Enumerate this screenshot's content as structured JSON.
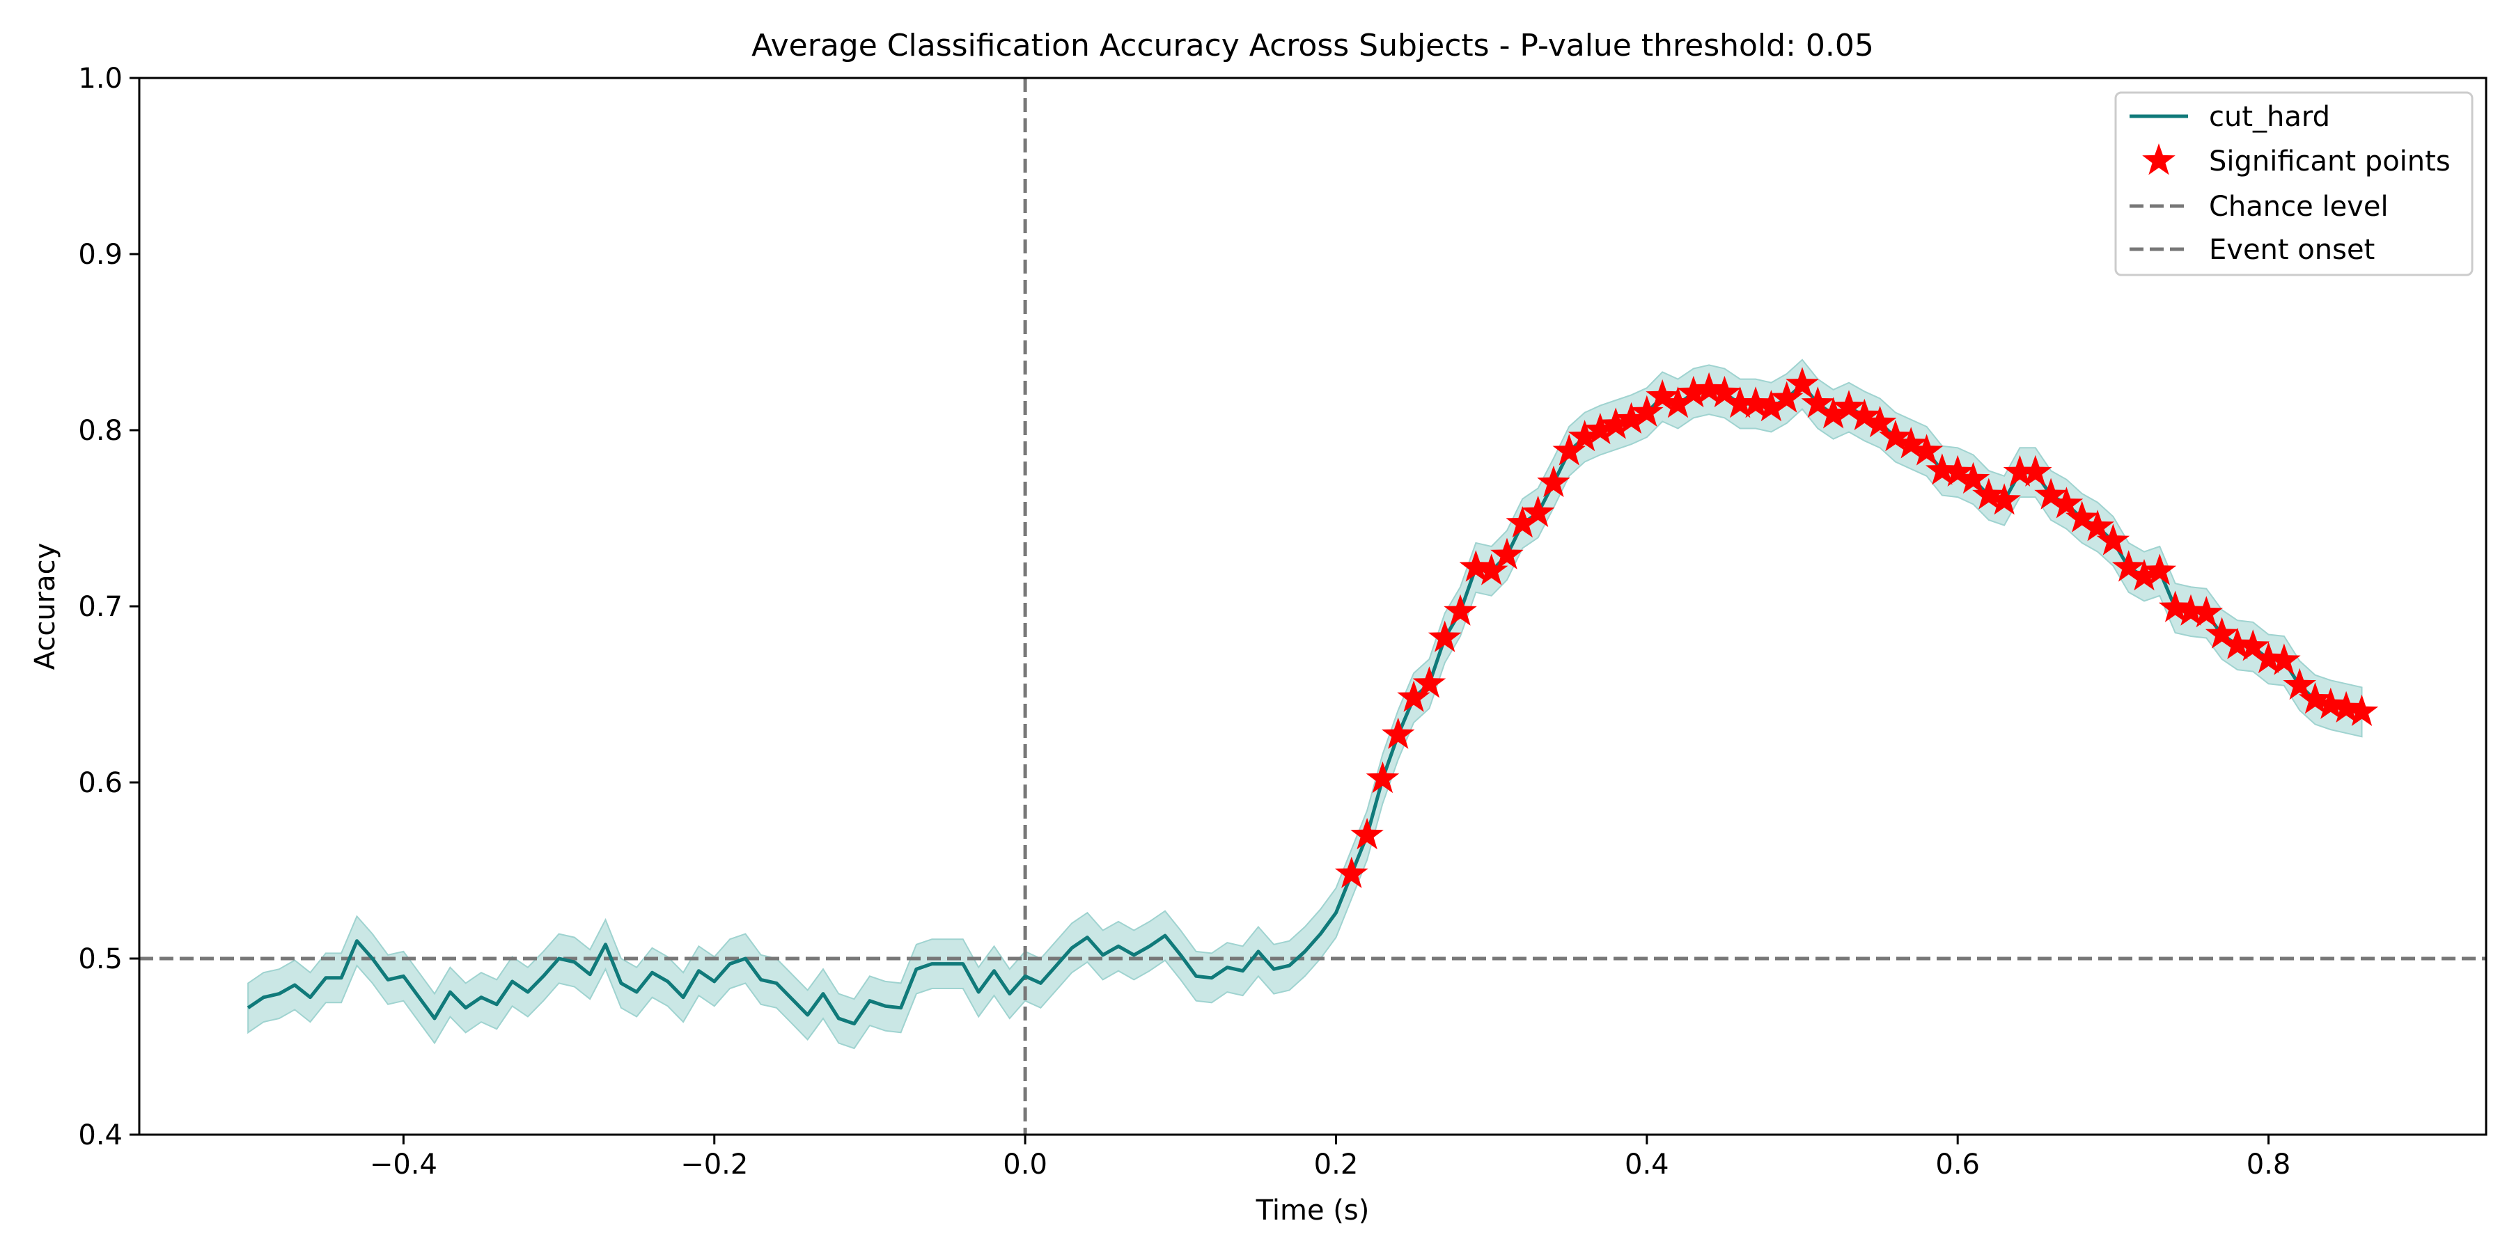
{
  "chart_data": {
    "type": "line",
    "title": "Average Classification Accuracy Across Subjects - P-value threshold: 0.05",
    "xlabel": "Time (s)",
    "ylabel": "Accuracy",
    "xlim": [
      -0.57,
      0.94
    ],
    "ylim": [
      0.4,
      1.0
    ],
    "xticks": [
      -0.4,
      -0.2,
      0.0,
      0.2,
      0.4,
      0.6,
      0.8
    ],
    "xtick_labels": [
      "−0.4",
      "−0.2",
      "0.0",
      "0.2",
      "0.4",
      "0.6",
      "0.8"
    ],
    "yticks": [
      0.4,
      0.5,
      0.6,
      0.7,
      0.8,
      0.9,
      1.0
    ],
    "ytick_labels": [
      "0.4",
      "0.5",
      "0.6",
      "0.7",
      "0.8",
      "0.9",
      "1.0"
    ],
    "grid": false,
    "legend_position": "top-right",
    "colors": {
      "series": "#107a7a",
      "band": "#9fd3d0",
      "significant": "#ff0000",
      "reference": "#777777"
    },
    "band_halfwidth": 0.014,
    "series": [
      {
        "name": "cut_hard",
        "x_start": -0.5,
        "x_step": 0.01,
        "values": [
          0.472,
          0.478,
          0.48,
          0.485,
          0.478,
          0.489,
          0.489,
          0.51,
          0.5,
          0.488,
          0.49,
          0.478,
          0.466,
          0.481,
          0.472,
          0.478,
          0.474,
          0.487,
          0.481,
          0.49,
          0.5,
          0.498,
          0.491,
          0.508,
          0.486,
          0.481,
          0.492,
          0.487,
          0.478,
          0.493,
          0.487,
          0.497,
          0.5,
          0.488,
          0.486,
          0.477,
          0.468,
          0.48,
          0.466,
          0.463,
          0.476,
          0.473,
          0.472,
          0.494,
          0.497,
          0.497,
          0.497,
          0.481,
          0.493,
          0.48,
          0.49,
          0.486,
          0.496,
          0.506,
          0.512,
          0.502,
          0.507,
          0.502,
          0.507,
          0.513,
          0.502,
          0.49,
          0.489,
          0.495,
          0.493,
          0.504,
          0.494,
          0.496,
          0.504,
          0.514,
          0.526,
          0.548,
          0.57,
          0.602,
          0.627,
          0.648,
          0.656,
          0.682,
          0.697,
          0.722,
          0.72,
          0.729,
          0.747,
          0.753,
          0.77,
          0.788,
          0.796,
          0.8,
          0.803,
          0.806,
          0.81,
          0.819,
          0.815,
          0.821,
          0.823,
          0.821,
          0.815,
          0.815,
          0.813,
          0.818,
          0.826,
          0.815,
          0.809,
          0.813,
          0.808,
          0.804,
          0.796,
          0.792,
          0.788,
          0.777,
          0.776,
          0.772,
          0.763,
          0.76,
          0.776,
          0.776,
          0.763,
          0.758,
          0.75,
          0.745,
          0.737,
          0.722,
          0.717,
          0.72,
          0.699,
          0.697,
          0.696,
          0.684,
          0.678,
          0.677,
          0.67,
          0.669,
          0.655,
          0.647,
          0.644,
          0.642,
          0.64
        ]
      }
    ],
    "significant_points": {
      "name": "Significant points",
      "from_x": 0.21,
      "to_x": 0.87
    },
    "reference_lines": [
      {
        "name": "Chance level",
        "orientation": "horizontal",
        "value": 0.5
      },
      {
        "name": "Event onset",
        "orientation": "vertical",
        "value": 0.0
      }
    ],
    "legend": {
      "entries": [
        "cut_hard",
        "Significant points",
        "Chance level",
        "Event onset"
      ]
    }
  }
}
